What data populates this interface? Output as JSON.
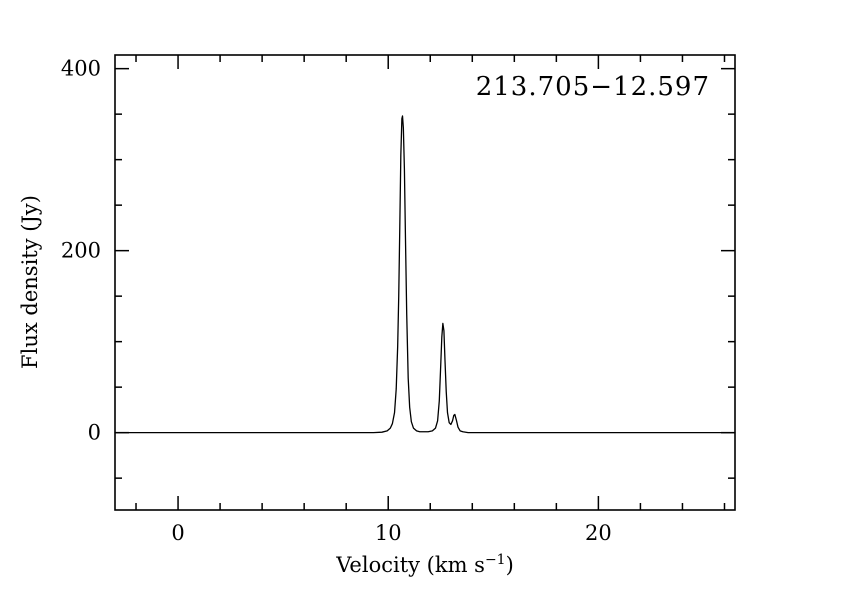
{
  "chart_data": {
    "type": "line",
    "title": "213.705−12.597",
    "xlabel": "Velocity (km s⁻¹)",
    "xlabel_parts": {
      "pre": "Velocity (km s",
      "sup": "−1",
      "post": ")"
    },
    "ylabel": "Flux density (Jy)",
    "xlim": [
      -3,
      26.5
    ],
    "ylim": [
      -85,
      415
    ],
    "x_major_ticks": [
      0,
      10,
      20
    ],
    "x_minor_step": 2,
    "y_major_ticks": [
      0,
      200,
      400
    ],
    "y_minor_step": 50,
    "line_color": "#000000",
    "axis_color": "#000000",
    "background": "#ffffff",
    "legend": "none",
    "grid": "off",
    "series": [
      {
        "name": "maser-spectrum",
        "points": [
          [
            -3.0,
            0
          ],
          [
            -1.0,
            0
          ],
          [
            1.0,
            0
          ],
          [
            3.0,
            0
          ],
          [
            5.0,
            0
          ],
          [
            7.0,
            0
          ],
          [
            8.5,
            0
          ],
          [
            9.3,
            0
          ],
          [
            9.7,
            0.5
          ],
          [
            9.95,
            2
          ],
          [
            10.1,
            5
          ],
          [
            10.2,
            10
          ],
          [
            10.3,
            22
          ],
          [
            10.38,
            48
          ],
          [
            10.45,
            95
          ],
          [
            10.5,
            150
          ],
          [
            10.55,
            225
          ],
          [
            10.6,
            305
          ],
          [
            10.65,
            345
          ],
          [
            10.68,
            348
          ],
          [
            10.72,
            335
          ],
          [
            10.77,
            290
          ],
          [
            10.82,
            215
          ],
          [
            10.88,
            130
          ],
          [
            10.95,
            60
          ],
          [
            11.02,
            28
          ],
          [
            11.1,
            12
          ],
          [
            11.2,
            5
          ],
          [
            11.35,
            2
          ],
          [
            11.5,
            1
          ],
          [
            11.7,
            1
          ],
          [
            11.9,
            1
          ],
          [
            12.1,
            2
          ],
          [
            12.25,
            5
          ],
          [
            12.35,
            13
          ],
          [
            12.43,
            35
          ],
          [
            12.5,
            75
          ],
          [
            12.55,
            105
          ],
          [
            12.6,
            120
          ],
          [
            12.65,
            112
          ],
          [
            12.7,
            80
          ],
          [
            12.76,
            45
          ],
          [
            12.82,
            22
          ],
          [
            12.9,
            11
          ],
          [
            12.98,
            9
          ],
          [
            13.06,
            13
          ],
          [
            13.12,
            19
          ],
          [
            13.17,
            20
          ],
          [
            13.24,
            14
          ],
          [
            13.32,
            6
          ],
          [
            13.42,
            2
          ],
          [
            13.55,
            1
          ],
          [
            13.8,
            0
          ],
          [
            14.5,
            0
          ],
          [
            16,
            0
          ],
          [
            18,
            0
          ],
          [
            20,
            0
          ],
          [
            22,
            0
          ],
          [
            24,
            0
          ],
          [
            26.5,
            0
          ]
        ]
      }
    ]
  }
}
